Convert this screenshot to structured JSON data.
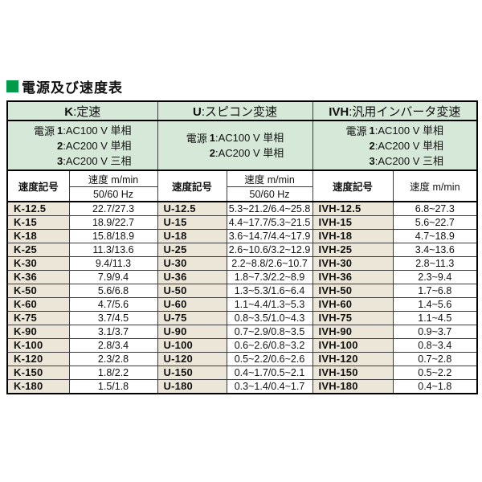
{
  "title": {
    "square_icon": "green-square",
    "text": "電源及び速度表"
  },
  "colors": {
    "title_green": "#009b48",
    "header_green": "#d6e8d8",
    "code_beige": "#ece6d8"
  },
  "table": {
    "sections": [
      {
        "key": "K",
        "header": {
          "code": "K",
          "label": ":定速"
        },
        "power": {
          "label": "電源",
          "lines": [
            {
              "num": "1",
              "text": ":AC100 V 単相"
            },
            {
              "num": "2",
              "text": ":AC200 V 単相"
            },
            {
              "num": "3",
              "text": ":AC200 V 三相"
            }
          ]
        },
        "columns": {
          "code": "速度記号",
          "speed": "速度 m/min",
          "freq": "50/60 Hz"
        },
        "rows": [
          {
            "code": "K-12.5",
            "value": "22.7/27.3"
          },
          {
            "code": "K-15",
            "value": "18.9/22.7"
          },
          {
            "code": "K-18",
            "value": "15.8/18.9"
          },
          {
            "code": "K-25",
            "value": "11.3/13.6"
          },
          {
            "code": "K-30",
            "value": "9.4/11.3"
          },
          {
            "code": "K-36",
            "value": "7.9/9.4"
          },
          {
            "code": "K-50",
            "value": "5.6/6.8"
          },
          {
            "code": "K-60",
            "value": "4.7/5.6"
          },
          {
            "code": "K-75",
            "value": "3.7/4.5"
          },
          {
            "code": "K-90",
            "value": "3.1/3.7"
          },
          {
            "code": "K-100",
            "value": "2.8/3.4"
          },
          {
            "code": "K-120",
            "value": "2.3/2.8"
          },
          {
            "code": "K-150",
            "value": "1.8/2.2"
          },
          {
            "code": "K-180",
            "value": "1.5/1.8"
          }
        ]
      },
      {
        "key": "U",
        "header": {
          "code": "U",
          "label": ":スピコン変速"
        },
        "power": {
          "label": "電源",
          "lines": [
            {
              "num": "1",
              "text": ":AC100 V 単相"
            },
            {
              "num": "2",
              "text": ":AC200 V 単相"
            }
          ]
        },
        "columns": {
          "code": "速度記号",
          "speed": "速度 m/min",
          "freq": "50/60 Hz"
        },
        "rows": [
          {
            "code": "U-12.5",
            "value": "5.3~21.2/6.4~25.8"
          },
          {
            "code": "U-15",
            "value": "4.4~17.7/5.3~21.5"
          },
          {
            "code": "U-18",
            "value": "3.6~14.7/4.4~17.9"
          },
          {
            "code": "U-25",
            "value": "2.6~10.6/3.2~12.9"
          },
          {
            "code": "U-30",
            "value": "2.2~8.8/2.6~10.7"
          },
          {
            "code": "U-36",
            "value": "1.8~7.3/2.2~8.9"
          },
          {
            "code": "U-50",
            "value": "1.3~5.3/1.6~6.4"
          },
          {
            "code": "U-60",
            "value": "1.1~4.4/1.3~5.3"
          },
          {
            "code": "U-75",
            "value": "0.8~3.5/1.0~4.3"
          },
          {
            "code": "U-90",
            "value": "0.7~2.9/0.8~3.5"
          },
          {
            "code": "U-100",
            "value": "0.6~2.6/0.8~3.2"
          },
          {
            "code": "U-120",
            "value": "0.5~2.2/0.6~2.6"
          },
          {
            "code": "U-150",
            "value": "0.4~1.7/0.5~2.1"
          },
          {
            "code": "U-180",
            "value": "0.3~1.4/0.4~1.7"
          }
        ]
      },
      {
        "key": "IVH",
        "header": {
          "code": "IVH",
          "label": ":汎用インバータ変速"
        },
        "power": {
          "label": "電源",
          "lines": [
            {
              "num": "1",
              "text": ":AC100 V 単相"
            },
            {
              "num": "2",
              "text": ":AC200 V 単相"
            },
            {
              "num": "3",
              "text": ":AC200 V 三相"
            }
          ]
        },
        "columns": {
          "code": "速度記号",
          "speed": "速度 m/min"
        },
        "rows": [
          {
            "code": "IVH-12.5",
            "value": "6.8~27.3"
          },
          {
            "code": "IVH-15",
            "value": "5.6~22.7"
          },
          {
            "code": "IVH-18",
            "value": "4.7~18.9"
          },
          {
            "code": "IVH-25",
            "value": "3.4~13.6"
          },
          {
            "code": "IVH-30",
            "value": "2.8~11.3"
          },
          {
            "code": "IVH-36",
            "value": "2.3~9.4"
          },
          {
            "code": "IVH-50",
            "value": "1.7~6.8"
          },
          {
            "code": "IVH-60",
            "value": "1.4~5.6"
          },
          {
            "code": "IVH-75",
            "value": "1.1~4.5"
          },
          {
            "code": "IVH-90",
            "value": "0.9~3.7"
          },
          {
            "code": "IVH-100",
            "value": "0.8~3.4"
          },
          {
            "code": "IVH-120",
            "value": "0.7~2.8"
          },
          {
            "code": "IVH-150",
            "value": "0.5~2.2"
          },
          {
            "code": "IVH-180",
            "value": "0.4~1.8"
          }
        ]
      }
    ]
  }
}
